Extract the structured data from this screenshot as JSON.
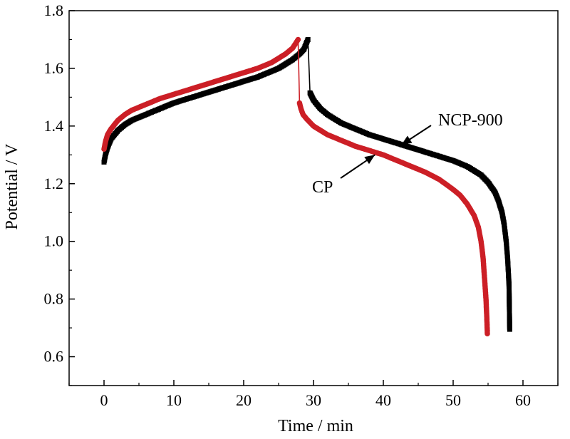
{
  "chart_data": {
    "type": "scatter",
    "title": "",
    "xlabel": "Time / min",
    "ylabel": "Potential / V",
    "xlim": [
      -5,
      65
    ],
    "ylim": [
      0.5,
      1.8
    ],
    "xticks": [
      0,
      10,
      20,
      30,
      40,
      50,
      60
    ],
    "yticks": [
      0.6,
      0.8,
      1.0,
      1.2,
      1.4,
      1.6,
      1.8
    ],
    "xtick_labels": [
      "0",
      "10",
      "20",
      "30",
      "40",
      "50",
      "60"
    ],
    "ytick_labels": [
      "0.6",
      "0.8",
      "1.0",
      "1.2",
      "1.4",
      "1.6",
      "1.8"
    ],
    "grid": false,
    "legend": "none (inline arrow annotations)",
    "series": [
      {
        "name": "NCP-900",
        "color": "#000000",
        "marker": "square",
        "charge": {
          "x": [
            0,
            0.2,
            0.5,
            1,
            1.5,
            2,
            3,
            4,
            5,
            6,
            8,
            10,
            12,
            14,
            16,
            18,
            20,
            22,
            24,
            25,
            26,
            27,
            28,
            28.6,
            29.2
          ],
          "y": [
            1.275,
            1.3,
            1.325,
            1.355,
            1.37,
            1.385,
            1.405,
            1.42,
            1.43,
            1.44,
            1.46,
            1.48,
            1.495,
            1.51,
            1.525,
            1.54,
            1.555,
            1.57,
            1.59,
            1.6,
            1.615,
            1.63,
            1.65,
            1.665,
            1.7
          ]
        },
        "discharge": {
          "x": [
            29.5,
            29.7,
            30,
            31,
            32,
            34,
            36,
            38,
            40,
            42,
            44,
            46,
            48,
            50,
            52,
            53,
            54,
            55,
            56,
            56.5,
            57,
            57.3,
            57.6,
            57.8,
            58,
            58.1
          ],
          "y": [
            1.515,
            1.505,
            1.49,
            1.46,
            1.44,
            1.41,
            1.39,
            1.37,
            1.355,
            1.34,
            1.325,
            1.31,
            1.295,
            1.28,
            1.26,
            1.245,
            1.23,
            1.205,
            1.17,
            1.14,
            1.1,
            1.06,
            1.0,
            0.94,
            0.85,
            0.695
          ]
        }
      },
      {
        "name": "CP",
        "color": "#cc1f26",
        "marker": "circle",
        "charge": {
          "x": [
            0,
            0.2,
            0.5,
            1,
            1.5,
            2,
            3,
            4,
            5,
            6,
            8,
            10,
            12,
            14,
            16,
            18,
            20,
            22,
            24,
            25,
            26,
            27,
            27.8
          ],
          "y": [
            1.32,
            1.345,
            1.37,
            1.39,
            1.405,
            1.42,
            1.44,
            1.455,
            1.465,
            1.475,
            1.495,
            1.51,
            1.525,
            1.54,
            1.555,
            1.57,
            1.585,
            1.6,
            1.62,
            1.635,
            1.65,
            1.67,
            1.7
          ]
        },
        "discharge": {
          "x": [
            28,
            28.2,
            28.5,
            29,
            30,
            31,
            32,
            34,
            36,
            38,
            40,
            42,
            44,
            46,
            48,
            50,
            51,
            52,
            53,
            53.6,
            54,
            54.3,
            54.5,
            54.7,
            54.8,
            54.9
          ],
          "y": [
            1.48,
            1.46,
            1.44,
            1.425,
            1.4,
            1.385,
            1.37,
            1.35,
            1.33,
            1.315,
            1.3,
            1.28,
            1.26,
            1.24,
            1.215,
            1.18,
            1.16,
            1.13,
            1.09,
            1.05,
            1.0,
            0.94,
            0.87,
            0.8,
            0.75,
            0.68
          ]
        }
      }
    ],
    "annotations": [
      {
        "text": "NCP-900",
        "arrow_to": [
          42.6,
          1.335
        ]
      },
      {
        "text": "CP",
        "arrow_to": [
          38.8,
          1.3
        ]
      }
    ]
  }
}
